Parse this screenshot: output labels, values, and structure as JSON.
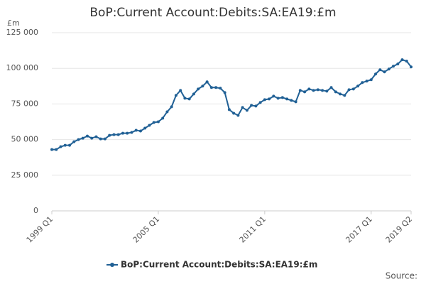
{
  "chart_data": {
    "type": "line",
    "title": "BoP:Current Account:Debits:SA:EA19:£m",
    "y_unit": "£m",
    "source": "Source:",
    "categories": [
      "1999 Q1",
      null,
      null,
      null,
      null,
      null,
      null,
      null,
      null,
      null,
      null,
      null,
      null,
      null,
      null,
      null,
      null,
      null,
      null,
      null,
      null,
      null,
      null,
      null,
      "2005 Q1",
      null,
      null,
      null,
      null,
      null,
      null,
      null,
      null,
      null,
      null,
      null,
      null,
      null,
      null,
      null,
      null,
      null,
      null,
      null,
      null,
      null,
      null,
      null,
      "2011 Q1",
      null,
      null,
      null,
      null,
      null,
      null,
      null,
      null,
      null,
      null,
      null,
      null,
      null,
      null,
      null,
      null,
      null,
      null,
      null,
      null,
      null,
      null,
      null,
      "2017 Q1",
      null,
      null,
      null,
      null,
      null,
      null,
      null,
      null,
      "2019 Q2"
    ],
    "series": [
      {
        "name": "BoP:Current Account:Debits:SA:EA19:£m",
        "color": "#206095",
        "values": [
          43000,
          43000,
          45000,
          46000,
          46000,
          48500,
          50000,
          51000,
          52500,
          51000,
          52000,
          50500,
          50500,
          53000,
          53500,
          53500,
          54500,
          54500,
          55000,
          56500,
          56000,
          58000,
          60000,
          62000,
          62500,
          65000,
          69500,
          73000,
          81000,
          84500,
          79000,
          78500,
          82000,
          85500,
          87500,
          90500,
          86500,
          86500,
          86000,
          83000,
          71000,
          68500,
          67000,
          72500,
          70500,
          74000,
          73500,
          76000,
          78000,
          78500,
          80500,
          79000,
          79500,
          78500,
          77500,
          76500,
          84500,
          83500,
          85500,
          84500,
          85000,
          84500,
          84000,
          86500,
          83500,
          82000,
          81000,
          85000,
          85500,
          87500,
          90000,
          91000,
          92000,
          96000,
          99000,
          97500,
          99500,
          101500,
          103000,
          106000,
          105000,
          101000
        ]
      }
    ],
    "ylim": [
      0,
      125000
    ],
    "yticks": [
      0,
      {
        "value": 25000,
        "label": "25 000"
      },
      {
        "value": 50000,
        "label": "50 000"
      },
      {
        "value": 75000,
        "label": "75 000"
      },
      {
        "value": 100000,
        "label": "100 000"
      },
      {
        "value": 125000,
        "label": "125 000"
      }
    ],
    "grid": true
  }
}
